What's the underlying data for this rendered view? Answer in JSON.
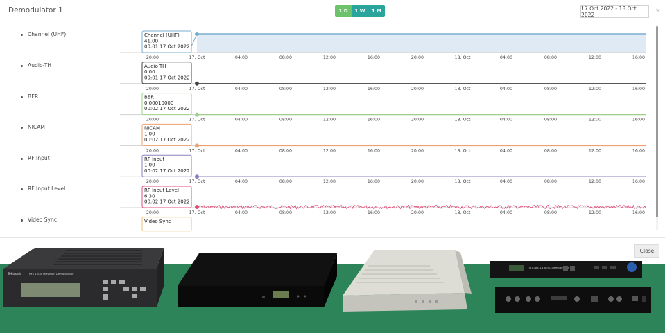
{
  "header": {
    "title": "Demodulator 1",
    "range_buttons": [
      "1 D",
      "1 W",
      "1 M"
    ],
    "active_range": "1 D",
    "date_range": "17 Oct 2022 - 18 Oct 2022",
    "close_x": "×"
  },
  "colors": {
    "accent_active": "#6cc36c",
    "accent": "#2aa59d",
    "photo_background": "#2d8458"
  },
  "axis_ticks": [
    "20:00",
    "17. Oct",
    "04:00",
    "08:00",
    "12:00",
    "16:00",
    "20:00",
    "18. Oct",
    "04:00",
    "08:00",
    "12:00",
    "16:00"
  ],
  "legend": [
    "Channel (UHF)",
    "Audio-TH",
    "BER",
    "NICAM",
    "RF Input",
    "RF Input Level",
    "Video Sync"
  ],
  "chart_data": [
    {
      "type": "area",
      "title": "Channel (UHF)",
      "color": "#7aaed0",
      "fill": "#dfeaf4",
      "x": [
        "17 Oct 2022 00:01",
        "18 Oct 2022 16:00"
      ],
      "values": [
        41.0,
        41.0
      ],
      "tooltip": {
        "name": "Channel (UHF)",
        "value": "41.00",
        "time": "00:01 17 Oct 2022"
      }
    },
    {
      "type": "line",
      "title": "Audio-TH",
      "color": "#444444",
      "x": [
        "17 Oct 2022 00:01",
        "18 Oct 2022 16:00"
      ],
      "values": [
        0.0,
        0.0
      ],
      "tooltip": {
        "name": "Audio-TH",
        "value": "0.00",
        "time": "00:01 17 Oct 2022"
      }
    },
    {
      "type": "line",
      "title": "BER",
      "color": "#9ed08a",
      "x": [
        "17 Oct 2022 00:02",
        "18 Oct 2022 16:00"
      ],
      "values": [
        0.0001,
        0.0001
      ],
      "tooltip": {
        "name": "BER",
        "value": "0.00010000",
        "time": "00:02 17 Oct 2022"
      }
    },
    {
      "type": "line",
      "title": "NICAM",
      "color": "#f0a070",
      "x": [
        "17 Oct 2022 00:02",
        "18 Oct 2022 16:00"
      ],
      "values": [
        1.0,
        1.0
      ],
      "tooltip": {
        "name": "NICAM",
        "value": "1.00",
        "time": "00:02 17 Oct 2022"
      }
    },
    {
      "type": "line",
      "title": "RF Input",
      "color": "#8a80c0",
      "x": [
        "17 Oct 2022 00:02",
        "18 Oct 2022 16:00"
      ],
      "values": [
        1.0,
        1.0
      ],
      "tooltip": {
        "name": "RF Input",
        "value": "1.00",
        "time": "00:02 17 Oct 2022"
      }
    },
    {
      "type": "line",
      "title": "RF Input Level",
      "color": "#e0507a",
      "x": [
        "17 Oct 2022 00:02"
      ],
      "values": [
        6.3
      ],
      "tooltip": {
        "name": "RF Input Level",
        "value": "6.30",
        "time": "00:02 17 Oct 2022"
      }
    },
    {
      "type": "line",
      "title": "Video Sync",
      "color": "#e8c27a",
      "x": [],
      "values": [],
      "tooltip": {
        "name": "Video Sync",
        "value": "",
        "time": ""
      }
    }
  ],
  "footer": {
    "close_label": "Close",
    "photos": [
      {
        "name": "tektronix-demodulator-photo",
        "badge": "Tektronix",
        "model": "RFS 1000 Television Demodulator"
      },
      {
        "name": "black-rack-demodulator-photo"
      },
      {
        "name": "silver-rack-demodulator-photo"
      },
      {
        "name": "dual-rack-demodulator-photo",
        "model": "TTX-DH214 ATSC Demodulator"
      }
    ]
  }
}
